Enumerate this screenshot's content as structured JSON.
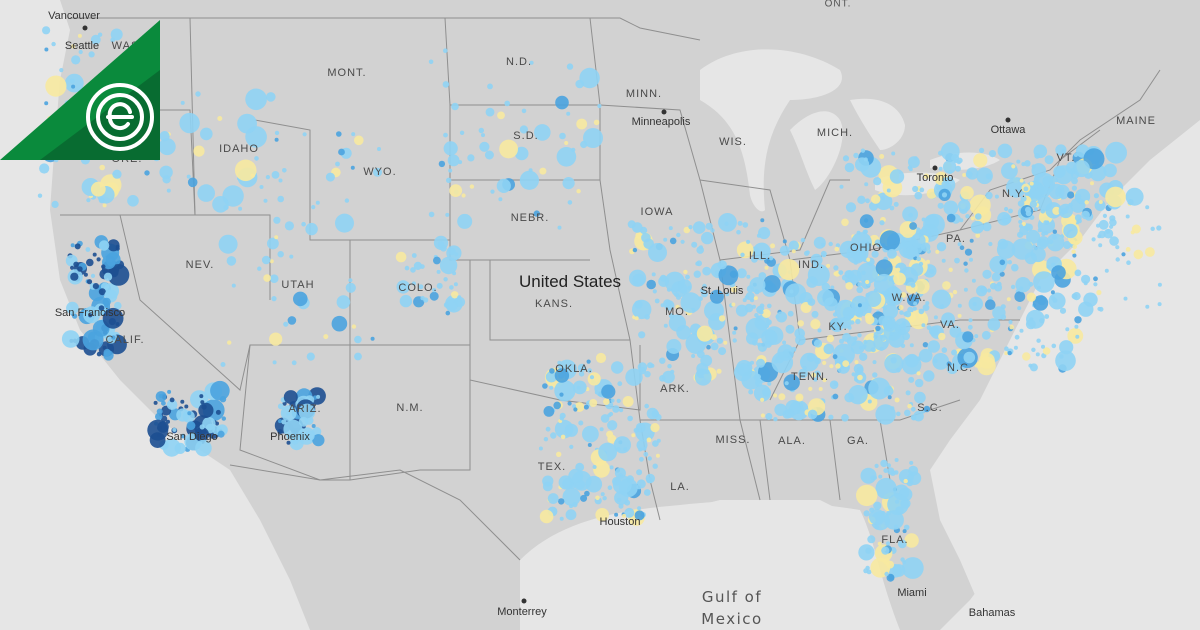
{
  "map": {
    "country_label": "United States",
    "state_labels": {
      "wash": "WASH.",
      "ore": "ORE.",
      "idaho": "IDAHO",
      "mont": "MONT.",
      "wyo": "WYO.",
      "nev": "NEV.",
      "utah": "UTAH",
      "colo": "COLO.",
      "ariz": "ARIZ.",
      "nm": "N.M.",
      "nd": "N.D.",
      "sd": "S.D.",
      "nebr": "NEBR.",
      "kans": "KANS.",
      "okla": "OKLA.",
      "tex": "TEX.",
      "minn": "MINN.",
      "iowa": "IOWA",
      "mo": "MO.",
      "ark": "ARK.",
      "la": "LA.",
      "wis": "WIS.",
      "ill": "ILL.",
      "mich": "MICH.",
      "ind": "IND.",
      "ohio": "OHIO",
      "ky": "KY.",
      "tenn": "TENN.",
      "miss": "MISS.",
      "ala": "ALA.",
      "ga": "GA.",
      "fla": "FLA.",
      "sc": "S.C.",
      "nc": "N.C.",
      "va": "VA.",
      "wva": "W.VA.",
      "pa": "PA.",
      "ny": "N.Y.",
      "vt": "VT.",
      "maine": "MAINE",
      "cal": "CALIF."
    },
    "canada_labels": {
      "ont": "ONT."
    },
    "city_labels": {
      "vancouver": "Vancouver",
      "seattle": "Seattle",
      "san_francisco": "San Francisco",
      "san_diego": "San Diego",
      "phoenix": "Phoenix",
      "minneapolis": "Minneapolis",
      "st_louis": "St. Louis",
      "houston": "Houston",
      "miami": "Miami",
      "ottawa": "Ottawa",
      "toronto": "Toronto",
      "monterrey": "Monterrey",
      "bahamas": "Bahamas"
    },
    "water_labels": {
      "gulf_line1": "Gulf of",
      "gulf_line2": "Mexico"
    },
    "colors": {
      "land": "#d2d2d2",
      "water": "#e8e8e8",
      "border": "#8a8a8a",
      "dot_light_blue": "#8fd3f4",
      "dot_mid_blue": "#4aa3df",
      "dot_dark_blue": "#1d4f91",
      "dot_yellow": "#f7e9a0",
      "logo_green": "#0a8a3c",
      "logo_dark_green": "#06582a"
    },
    "brand_logo_icon": "e-circle-logo-icon"
  }
}
